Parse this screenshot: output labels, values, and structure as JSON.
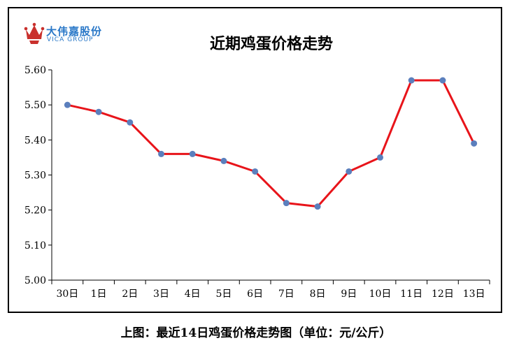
{
  "logo": {
    "name_cn": "大伟嘉股份",
    "name_en": "VICA GROUP"
  },
  "caption": "上图：最近14日鸡蛋价格走势图（单位：元/公斤）",
  "chart_data": {
    "type": "line",
    "title": "近期鸡蛋价格走势",
    "categories": [
      "30日",
      "1日",
      "2日",
      "3日",
      "4日",
      "5日",
      "6日",
      "7日",
      "8日",
      "9日",
      "10日",
      "11日",
      "12日",
      "13日"
    ],
    "values": [
      5.5,
      5.48,
      5.45,
      5.36,
      5.36,
      5.34,
      5.31,
      5.22,
      5.21,
      5.31,
      5.35,
      5.57,
      5.57,
      5.39
    ],
    "y_ticks": [
      "5.00",
      "5.10",
      "5.20",
      "5.30",
      "5.40",
      "5.50",
      "5.60"
    ],
    "ylim": [
      5.0,
      5.6
    ],
    "xlabel": "",
    "ylabel": "",
    "grid": false,
    "line_color": "#e8141a",
    "marker_color": "#5b7fbd"
  }
}
